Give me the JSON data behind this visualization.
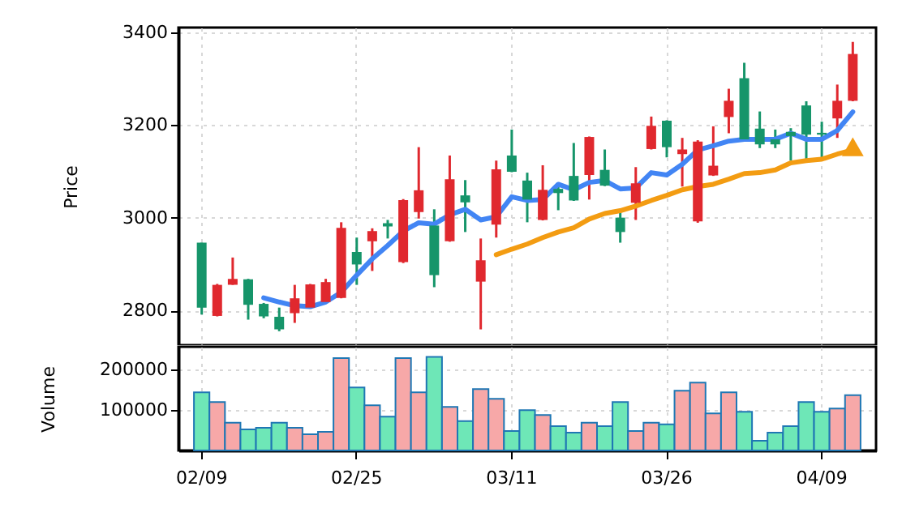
{
  "chart_data": [
    {
      "type": "candlestick",
      "ylabel": "Price",
      "ylim": [
        2725,
        3410
      ],
      "yticks": [
        2800,
        3000,
        3200,
        3400
      ],
      "grid": true,
      "categories": [
        null,
        null,
        null,
        null,
        null,
        null,
        null,
        null,
        null,
        null,
        null,
        null,
        null,
        null,
        null,
        null,
        null,
        null,
        null,
        null,
        null,
        null,
        null,
        null,
        null,
        null,
        null,
        null,
        null,
        null,
        null,
        null,
        null,
        null,
        null,
        null,
        null,
        null,
        null,
        null,
        null,
        null,
        null
      ],
      "ohlc": [
        [
          2806,
          2946,
          2791,
          2946
        ],
        [
          2855,
          2857,
          2787,
          2788
        ],
        [
          2868,
          2914,
          2855,
          2855
        ],
        [
          2812,
          2868,
          2780,
          2867
        ],
        [
          2787,
          2816,
          2783,
          2814
        ],
        [
          2759,
          2806,
          2755,
          2786
        ],
        [
          2826,
          2855,
          2773,
          2794
        ],
        [
          2856,
          2857,
          2805,
          2806
        ],
        [
          2861,
          2868,
          2817,
          2818
        ],
        [
          2978,
          2990,
          2826,
          2827
        ],
        [
          2899,
          2957,
          2855,
          2926
        ],
        [
          2971,
          2977,
          2885,
          2949
        ],
        [
          2981,
          2995,
          2955,
          2988
        ],
        [
          3038,
          3040,
          2902,
          2904
        ],
        [
          3059,
          3152,
          2998,
          3012
        ],
        [
          2876,
          3018,
          2850,
          2983
        ],
        [
          3083,
          3134,
          2948,
          2949
        ],
        [
          3033,
          3081,
          2969,
          3048
        ],
        [
          2908,
          2955,
          2759,
          2862
        ],
        [
          3104,
          3123,
          2957,
          2985
        ],
        [
          3099,
          3190,
          3098,
          3134
        ],
        [
          3039,
          3097,
          2990,
          3080
        ],
        [
          3060,
          3113,
          2994,
          2995
        ],
        [
          3053,
          3074,
          3016,
          3062
        ],
        [
          3037,
          3161,
          3036,
          3090
        ],
        [
          3174,
          3175,
          3039,
          3092
        ],
        [
          3069,
          3147,
          3068,
          3103
        ],
        [
          2969,
          3019,
          2946,
          3000
        ],
        [
          3074,
          3109,
          2995,
          3032
        ],
        [
          3198,
          3218,
          3147,
          3148
        ],
        [
          3152,
          3210,
          3130,
          3209
        ],
        [
          3147,
          3172,
          3067,
          3137
        ],
        [
          3164,
          3167,
          2989,
          2992
        ],
        [
          3112,
          3197,
          3090,
          3091
        ],
        [
          3252,
          3278,
          3182,
          3217
        ],
        [
          3169,
          3334,
          3168,
          3301
        ],
        [
          3158,
          3229,
          3150,
          3192
        ],
        [
          3158,
          3190,
          3150,
          3169
        ],
        [
          3176,
          3193,
          3123,
          3185
        ],
        [
          3179,
          3251,
          3126,
          3242
        ],
        [
          3179,
          3207,
          3130,
          3183
        ],
        [
          3252,
          3287,
          3172,
          3214
        ],
        [
          3353,
          3379,
          3251,
          3252
        ]
      ],
      "colors": [
        "#16956a",
        "#e0282e",
        "#e0282e",
        "#16956a",
        "#16956a",
        "#16956a",
        "#e0282e",
        "#e0282e",
        "#e0282e",
        "#e0282e",
        "#16956a",
        "#e0282e",
        "#16956a",
        "#e0282e",
        "#e0282e",
        "#16956a",
        "#e0282e",
        "#16956a",
        "#e0282e",
        "#e0282e",
        "#16956a",
        "#16956a",
        "#e0282e",
        "#16956a",
        "#16956a",
        "#e0282e",
        "#16956a",
        "#16956a",
        "#e0282e",
        "#e0282e",
        "#16956a",
        "#e0282e",
        "#e0282e",
        "#e0282e",
        "#e0282e",
        "#16956a",
        "#16956a",
        "#16956a",
        "#16956a",
        "#16956a",
        "#16956a",
        "#e0282e",
        "#e0282e"
      ],
      "series": [
        {
          "type": "line",
          "color": "#4285f4",
          "values": [
            null,
            null,
            null,
            null,
            2827,
            2818,
            2810,
            2808,
            2818,
            2839,
            2876,
            2911,
            2940,
            2971,
            2989,
            2986,
            3006,
            3018,
            2995,
            3002,
            3045,
            3037,
            3039,
            3072,
            3060,
            3076,
            3080,
            3062,
            3064,
            3097,
            3092,
            3115,
            3146,
            3155,
            3165,
            3169,
            3169,
            3169,
            3182,
            3169,
            3169,
            3188,
            3228
          ]
        },
        {
          "type": "line",
          "color": "#f39c12",
          "values": [
            null,
            null,
            null,
            null,
            null,
            null,
            null,
            null,
            null,
            null,
            null,
            null,
            null,
            null,
            null,
            null,
            null,
            null,
            null,
            2920,
            2932,
            2943,
            2957,
            2969,
            2978,
            2997,
            3009,
            3015,
            3025,
            3037,
            3048,
            3060,
            3067,
            3072,
            3083,
            3095,
            3097,
            3103,
            3118,
            3123,
            3126,
            3137,
            3146
          ]
        },
        {
          "type": "scatter",
          "marker": "triangle",
          "color": "#f39c12",
          "values": [
            null,
            null,
            null,
            null,
            null,
            null,
            null,
            null,
            null,
            null,
            null,
            null,
            null,
            null,
            null,
            null,
            null,
            null,
            null,
            null,
            null,
            null,
            null,
            null,
            null,
            null,
            null,
            null,
            null,
            null,
            null,
            null,
            null,
            null,
            null,
            null,
            null,
            null,
            null,
            null,
            null,
            null,
            3153
          ]
        }
      ]
    },
    {
      "type": "bar",
      "ylabel": "Volume",
      "ylim": [
        0,
        255000
      ],
      "yticks": [
        100000,
        200000
      ],
      "grid": true,
      "categories": [
        "02/09",
        null,
        null,
        null,
        null,
        null,
        null,
        null,
        null,
        null,
        "02/25",
        null,
        null,
        null,
        null,
        null,
        null,
        null,
        null,
        null,
        "03/11",
        null,
        null,
        null,
        null,
        null,
        null,
        null,
        null,
        null,
        "03/26",
        null,
        null,
        null,
        null,
        null,
        null,
        null,
        null,
        null,
        "04/09",
        null,
        null
      ],
      "values": [
        143000,
        119000,
        68000,
        52000,
        56000,
        68000,
        56000,
        40000,
        46000,
        227000,
        155000,
        111000,
        83000,
        227000,
        143000,
        230000,
        107000,
        72000,
        151000,
        127000,
        48000,
        99000,
        87000,
        60000,
        44000,
        68000,
        60000,
        119000,
        48000,
        68000,
        64000,
        147000,
        167000,
        91000,
        143000,
        95000,
        24000,
        44000,
        60000,
        119000,
        95000,
        103000,
        136000
      ],
      "colors": [
        "#6ee7b7",
        "#f7a8a8",
        "#f7a8a8",
        "#6ee7b7",
        "#6ee7b7",
        "#6ee7b7",
        "#f7a8a8",
        "#f7a8a8",
        "#f7a8a8",
        "#f7a8a8",
        "#6ee7b7",
        "#f7a8a8",
        "#6ee7b7",
        "#f7a8a8",
        "#f7a8a8",
        "#6ee7b7",
        "#f7a8a8",
        "#6ee7b7",
        "#f7a8a8",
        "#f7a8a8",
        "#6ee7b7",
        "#6ee7b7",
        "#f7a8a8",
        "#6ee7b7",
        "#6ee7b7",
        "#f7a8a8",
        "#6ee7b7",
        "#6ee7b7",
        "#f7a8a8",
        "#f7a8a8",
        "#6ee7b7",
        "#f7a8a8",
        "#f7a8a8",
        "#f7a8a8",
        "#f7a8a8",
        "#6ee7b7",
        "#6ee7b7",
        "#6ee7b7",
        "#6ee7b7",
        "#6ee7b7",
        "#6ee7b7",
        "#f7a8a8",
        "#f7a8a8"
      ]
    }
  ]
}
